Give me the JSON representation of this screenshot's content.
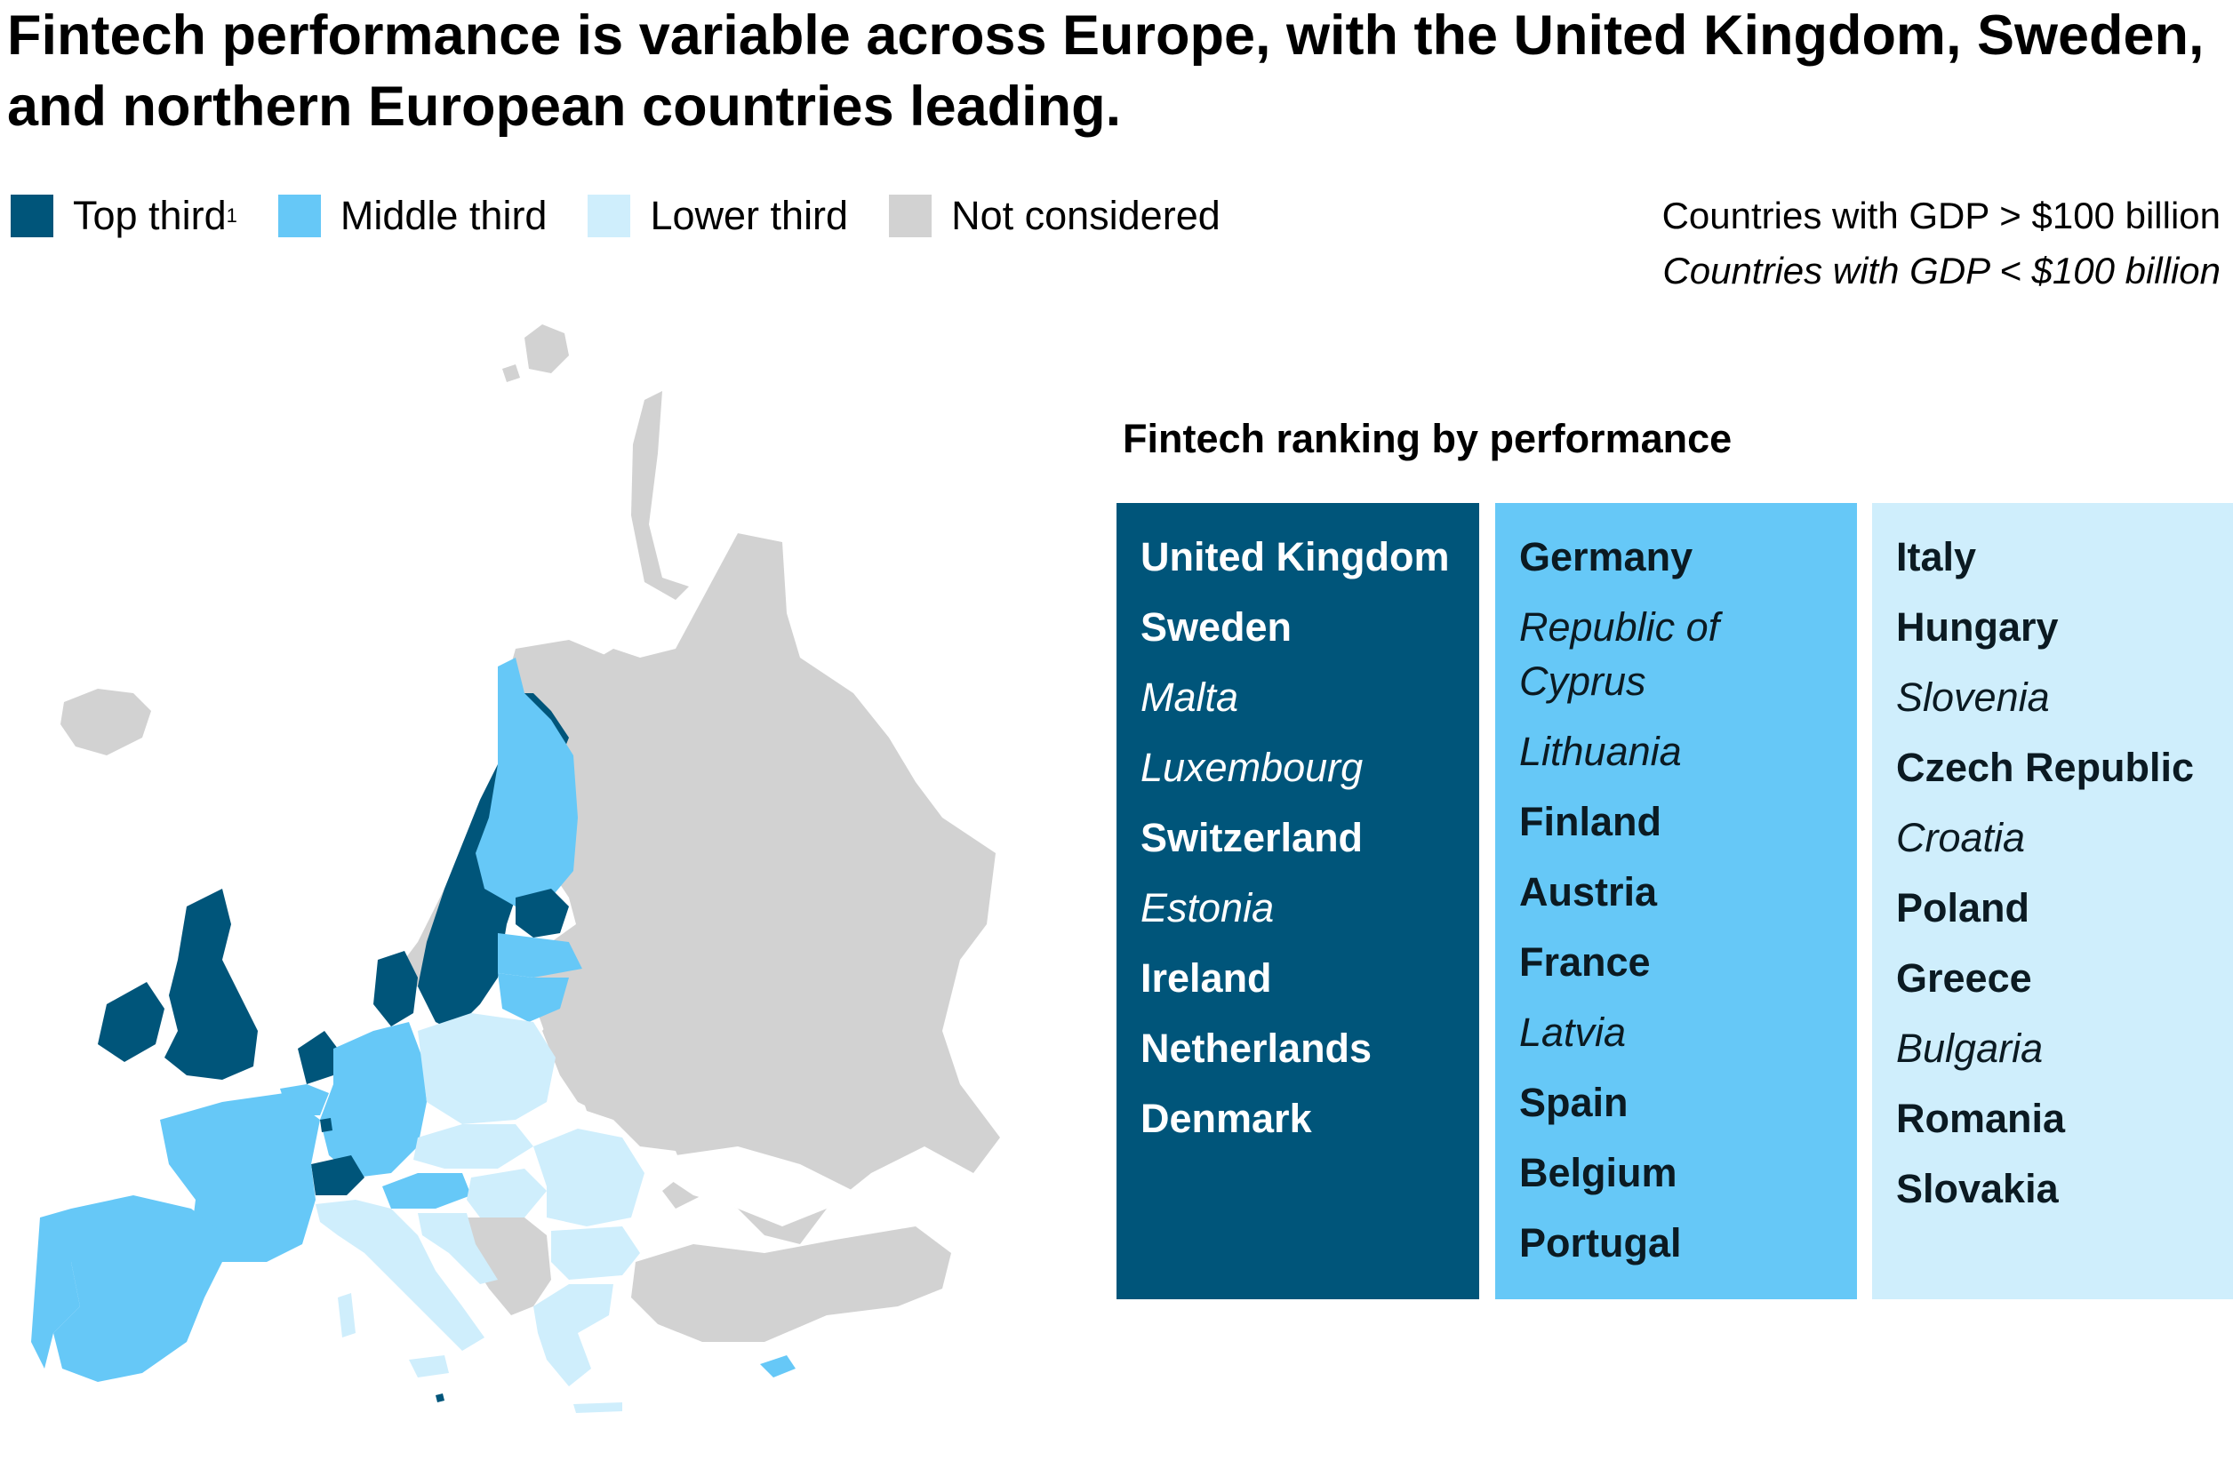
{
  "title": "Fintech performance is variable across Europe, with the United Kingdom, Sweden, and northern European countries leading.",
  "colors": {
    "top": "#00557a",
    "middle": "#66c8f7",
    "lower": "#cfeefc",
    "not_considered": "#d2d2d2"
  },
  "legend": {
    "top": "Top third",
    "top_note": "1",
    "middle": "Middle third",
    "lower": "Lower third",
    "not_considered": "Not considered"
  },
  "gdp_note": {
    "above": "Countries with GDP > $100 billion",
    "below": "Countries with GDP < $100 billion"
  },
  "ranking": {
    "title": "Fintech ranking by performance",
    "top": [
      {
        "name": "United Kingdom",
        "gdp": "above"
      },
      {
        "name": "Sweden",
        "gdp": "above"
      },
      {
        "name": "Malta",
        "gdp": "below"
      },
      {
        "name": "Luxembourg",
        "gdp": "below"
      },
      {
        "name": "Switzerland",
        "gdp": "above"
      },
      {
        "name": "Estonia",
        "gdp": "below"
      },
      {
        "name": "Ireland",
        "gdp": "above"
      },
      {
        "name": "Netherlands",
        "gdp": "above"
      },
      {
        "name": "Denmark",
        "gdp": "above"
      }
    ],
    "middle": [
      {
        "name": "Germany",
        "gdp": "above"
      },
      {
        "name": "Republic of Cyprus",
        "gdp": "below"
      },
      {
        "name": "Lithuania",
        "gdp": "below"
      },
      {
        "name": "Finland",
        "gdp": "above"
      },
      {
        "name": "Austria",
        "gdp": "above"
      },
      {
        "name": "France",
        "gdp": "above"
      },
      {
        "name": "Latvia",
        "gdp": "below"
      },
      {
        "name": "Spain",
        "gdp": "above"
      },
      {
        "name": "Belgium",
        "gdp": "above"
      },
      {
        "name": "Portugal",
        "gdp": "above"
      }
    ],
    "lower": [
      {
        "name": "Italy",
        "gdp": "above"
      },
      {
        "name": "Hungary",
        "gdp": "above"
      },
      {
        "name": "Slovenia",
        "gdp": "below"
      },
      {
        "name": "Czech Republic",
        "gdp": "above"
      },
      {
        "name": "Croatia",
        "gdp": "below"
      },
      {
        "name": "Poland",
        "gdp": "above"
      },
      {
        "name": "Greece",
        "gdp": "above"
      },
      {
        "name": "Bulgaria",
        "gdp": "below"
      },
      {
        "name": "Romania",
        "gdp": "above"
      },
      {
        "name": "Slovakia",
        "gdp": "above"
      }
    ]
  }
}
